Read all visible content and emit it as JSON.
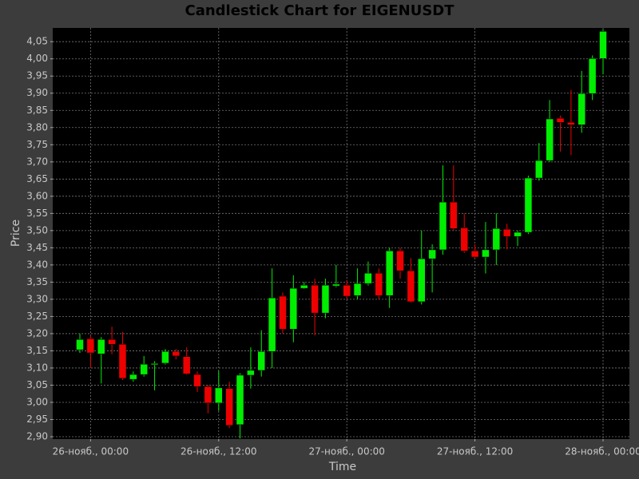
{
  "chart_data": {
    "type": "candlestick",
    "title": "Candlestick Chart for EIGENUSDT",
    "x_label": "Time",
    "y_label": "Price",
    "x": [
      "25-нояб., 23:00",
      "26-нояб., 00:00",
      "26-нояб., 01:00",
      "26-нояб., 02:00",
      "26-нояб., 03:00",
      "26-нояб., 04:00",
      "26-нояб., 05:00",
      "26-нояб., 06:00",
      "26-нояб., 07:00",
      "26-нояб., 08:00",
      "26-нояб., 09:00",
      "26-нояб., 10:00",
      "26-нояб., 11:00",
      "26-нояб., 12:00",
      "26-нояб., 13:00",
      "26-нояб., 14:00",
      "26-нояб., 15:00",
      "26-нояб., 16:00",
      "26-нояб., 17:00",
      "26-нояб., 18:00",
      "26-нояб., 19:00",
      "26-нояб., 20:00",
      "26-нояб., 21:00",
      "26-нояб., 22:00",
      "26-нояб., 23:00",
      "27-нояб., 00:00",
      "27-нояб., 01:00",
      "27-нояб., 02:00",
      "27-нояб., 03:00",
      "27-нояб., 04:00",
      "27-нояб., 05:00",
      "27-нояб., 06:00",
      "27-нояб., 07:00",
      "27-нояб., 08:00",
      "27-нояб., 09:00",
      "27-нояб., 10:00",
      "27-нояб., 11:00",
      "27-нояб., 12:00",
      "27-нояб., 13:00",
      "27-нояб., 14:00",
      "27-нояб., 15:00",
      "27-нояб., 16:00",
      "27-нояб., 17:00",
      "27-нояб., 18:00",
      "27-нояб., 19:00",
      "27-нояб., 20:00",
      "27-нояб., 21:00",
      "27-нояб., 22:00",
      "27-нояб., 23:00",
      "28-нояб., 00:00"
    ],
    "open": [
      3.153,
      3.185,
      3.141,
      3.183,
      3.169,
      3.067,
      3.081,
      3.11,
      3.114,
      3.148,
      3.133,
      3.081,
      3.046,
      2.998,
      3.04,
      2.935,
      3.079,
      3.093,
      3.148,
      3.309,
      3.213,
      3.332,
      3.341,
      3.26,
      3.339,
      3.341,
      3.311,
      3.346,
      3.376,
      3.311,
      3.441,
      3.383,
      3.293,
      3.418,
      3.444,
      3.583,
      3.508,
      3.441,
      3.423,
      3.444,
      3.504,
      3.483,
      3.495,
      3.653,
      3.704,
      3.827,
      3.815,
      3.808,
      3.899,
      4.001
    ],
    "high": [
      3.2,
      3.195,
      3.19,
      3.22,
      3.205,
      3.09,
      3.135,
      3.12,
      3.155,
      3.155,
      3.16,
      3.09,
      3.05,
      3.092,
      3.06,
      3.085,
      3.16,
      3.21,
      3.39,
      3.32,
      3.37,
      3.35,
      3.36,
      3.36,
      3.4,
      3.355,
      3.39,
      3.41,
      3.39,
      3.45,
      3.45,
      3.42,
      3.5,
      3.46,
      3.69,
      3.69,
      3.55,
      3.46,
      3.525,
      3.55,
      3.52,
      3.5,
      3.66,
      3.755,
      3.88,
      3.835,
      3.91,
      3.965,
      4.01,
      4.085
    ],
    "low": [
      3.144,
      3.1,
      3.055,
      3.14,
      3.065,
      3.06,
      3.075,
      3.035,
      3.11,
      3.125,
      3.08,
      3.03,
      2.968,
      2.975,
      2.925,
      2.895,
      3.04,
      3.075,
      3.1,
      3.2,
      3.175,
      3.33,
      3.195,
      3.245,
      3.335,
      3.3,
      3.3,
      3.34,
      3.3,
      3.275,
      3.36,
      3.29,
      3.285,
      3.32,
      3.43,
      3.5,
      3.435,
      3.42,
      3.375,
      3.4,
      3.445,
      3.455,
      3.49,
      3.645,
      3.7,
      3.73,
      3.72,
      3.785,
      3.88,
      3.955
    ],
    "close": [
      3.183,
      3.144,
      3.183,
      3.169,
      3.07,
      3.081,
      3.111,
      3.113,
      3.148,
      3.135,
      3.083,
      3.046,
      2.998,
      3.042,
      2.933,
      3.079,
      3.093,
      3.148,
      3.304,
      3.213,
      3.332,
      3.341,
      3.26,
      3.341,
      3.344,
      3.309,
      3.346,
      3.376,
      3.311,
      3.441,
      3.383,
      3.293,
      3.418,
      3.444,
      3.583,
      3.506,
      3.441,
      3.423,
      3.444,
      3.506,
      3.483,
      3.495,
      3.653,
      3.704,
      3.825,
      3.815,
      3.808,
      3.899,
      4.001,
      4.08
    ],
    "up_color": "#00ee00",
    "down_color": "#ee0000",
    "ylim": [
      2.893,
      4.09
    ],
    "yticks": [
      {
        "value": 2.9,
        "label": "2,90"
      },
      {
        "value": 2.95,
        "label": "2,95"
      },
      {
        "value": 3.0,
        "label": "3,00"
      },
      {
        "value": 3.05,
        "label": "3,05"
      },
      {
        "value": 3.1,
        "label": "3,10"
      },
      {
        "value": 3.15,
        "label": "3,15"
      },
      {
        "value": 3.2,
        "label": "3,20"
      },
      {
        "value": 3.25,
        "label": "3,25"
      },
      {
        "value": 3.3,
        "label": "3,30"
      },
      {
        "value": 3.35,
        "label": "3,35"
      },
      {
        "value": 3.4,
        "label": "3,40"
      },
      {
        "value": 3.45,
        "label": "3,45"
      },
      {
        "value": 3.5,
        "label": "3,50"
      },
      {
        "value": 3.55,
        "label": "3,55"
      },
      {
        "value": 3.6,
        "label": "3,60"
      },
      {
        "value": 3.65,
        "label": "3,65"
      },
      {
        "value": 3.7,
        "label": "3,70"
      },
      {
        "value": 3.75,
        "label": "3,75"
      },
      {
        "value": 3.8,
        "label": "3,80"
      },
      {
        "value": 3.85,
        "label": "3,85"
      },
      {
        "value": 3.9,
        "label": "3,90"
      },
      {
        "value": 3.95,
        "label": "3,95"
      },
      {
        "value": 4.0,
        "label": "4,00"
      },
      {
        "value": 4.05,
        "label": "4,05"
      }
    ],
    "xticks": [
      "26-нояб., 00:00",
      "26-нояб., 12:00",
      "27-нояб., 00:00",
      "27-нояб., 12:00",
      "28-нояб., 00:00"
    ],
    "grid": true
  }
}
